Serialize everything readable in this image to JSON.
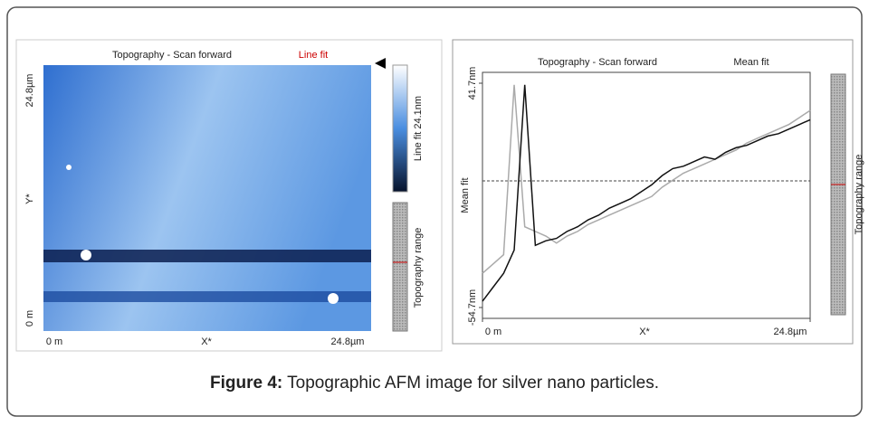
{
  "figure": {
    "caption_label": "Figure 4:",
    "caption_text": " Topographic AFM image for silver nano particles."
  },
  "image_panel": {
    "title": "Topography - Scan forward",
    "title_fit": "Line fit",
    "y_axis_top": "24.8µm",
    "y_axis_mid": "Y*",
    "y_axis_bottom": "0 m",
    "x_axis_left": "0 m",
    "x_axis_mid": "X*",
    "x_axis_right": "24.8µm",
    "colorbar_label": "Line fit 24.1nm",
    "range_label": "Topography range"
  },
  "chart_data": {
    "type": "line",
    "title": "Topography - Scan forward",
    "title_fit": "Mean fit",
    "y_label": "Mean fit",
    "x_label": "X*",
    "range_label": "Topography range",
    "x": [
      0,
      0.8,
      1.6,
      2.4,
      3.2,
      4.0,
      4.8,
      5.6,
      6.4,
      7.2,
      8.0,
      8.8,
      9.6,
      10.4,
      11.2,
      12.0,
      12.8,
      13.6,
      14.4,
      15.2,
      16.0,
      16.8,
      17.6,
      18.4,
      19.2,
      20.0,
      20.8,
      21.6,
      22.4,
      23.2,
      24.0,
      24.8
    ],
    "series": [
      {
        "color": "#aaaaaa",
        "values": [
          -40,
          -36,
          -32,
          41,
          -20,
          -22,
          -24,
          -27,
          -24,
          -22,
          -19,
          -17,
          -15,
          -13,
          -11,
          -9,
          -7,
          -3,
          0,
          3,
          5,
          7,
          9,
          11,
          13,
          16,
          18,
          20,
          22,
          24,
          27,
          30
        ]
      },
      {
        "color": "#111111",
        "values": [
          -52,
          -46,
          -40,
          -30,
          41,
          -28,
          -26,
          -25,
          -22,
          -20,
          -17,
          -15,
          -12,
          -10,
          -8,
          -5,
          -2,
          2,
          5,
          6,
          8,
          10,
          9,
          12,
          14,
          15,
          17,
          19,
          20,
          22,
          24,
          26
        ]
      }
    ],
    "xlim": [
      0,
      24.8
    ],
    "xticks": [
      {
        "value": 0,
        "label": "0 m"
      },
      {
        "value": 24.8,
        "label": "24.8µm"
      }
    ],
    "ylim": [
      -54.7,
      41.7
    ],
    "yticks": [
      {
        "value": -54.7,
        "label": "-54.7nm"
      },
      {
        "value": 41.7,
        "label": "41.7nm"
      }
    ]
  }
}
